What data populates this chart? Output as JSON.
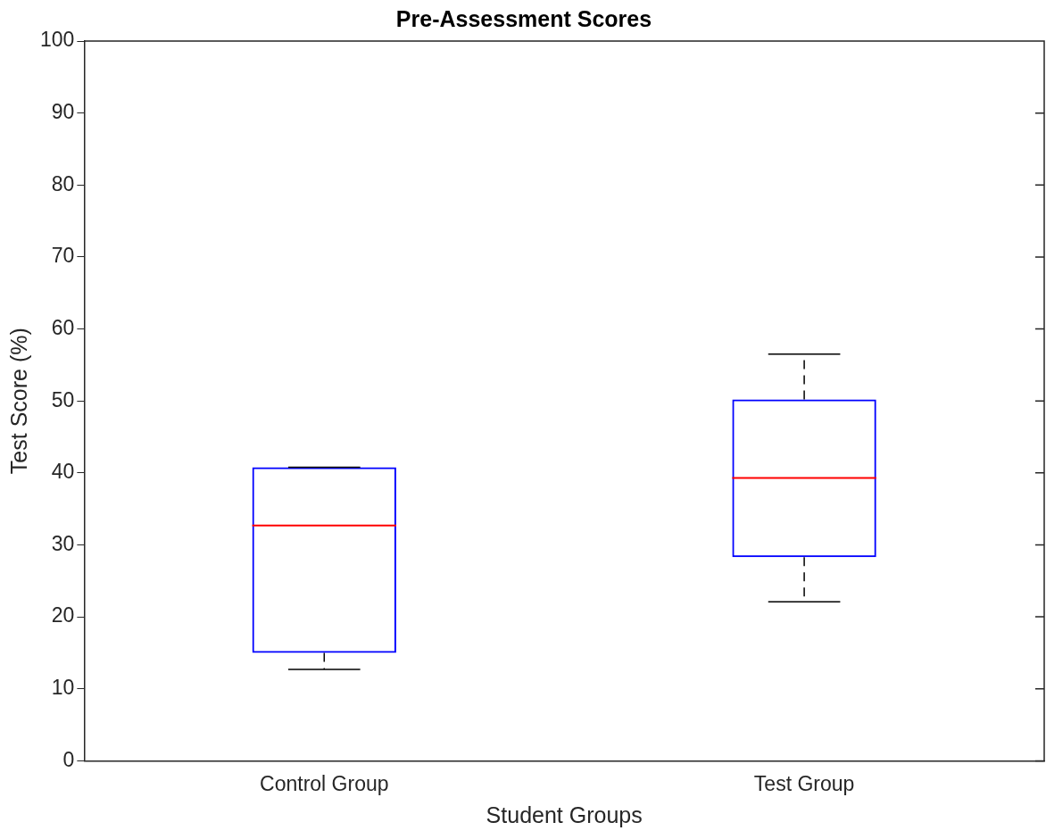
{
  "chart_data": {
    "type": "box",
    "title": "Pre-Assessment Scores",
    "xlabel": "Student Groups",
    "ylabel": "Test Score (%)",
    "categories": [
      "Control Group",
      "Test Group"
    ],
    "boxes": [
      {
        "low": 12.7,
        "q1": 15,
        "median": 32.7,
        "q3": 40.8,
        "high": 40.8
      },
      {
        "low": 22.1,
        "q1": 28.3,
        "median": 39.3,
        "q3": 50.2,
        "high": 56.5
      }
    ],
    "color": "#0000ff",
    "ylim": [
      0,
      100
    ],
    "yticks": [
      0,
      10,
      20,
      30,
      40,
      50,
      60,
      70,
      80,
      90,
      100
    ],
    "grid": false,
    "legend": false
  }
}
